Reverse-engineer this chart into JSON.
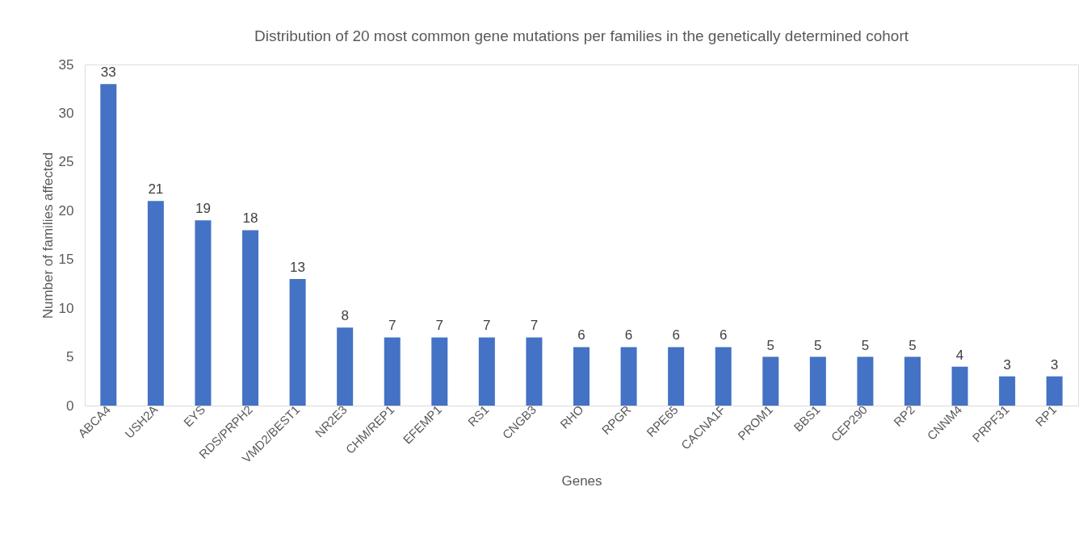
{
  "chart_data": {
    "type": "bar",
    "title": "Distribution  of 20 most common gene mutations per families in the genetically determined cohort",
    "xlabel": "Genes",
    "ylabel": "Number of families affected",
    "categories": [
      "ABCA4",
      "USH2A",
      "EYS",
      "RDS/PRPH2",
      "VMD2/BEST1",
      "NR2E3",
      "CHM/REP1",
      "EFEMP1",
      "RS1",
      "CNGB3",
      "RHO",
      "RPGR",
      "RPE65",
      "CACNA1F",
      "PROM1",
      "BBS1",
      "CEP290",
      "RP2",
      "CNNM4",
      "PRPF31",
      "RP1"
    ],
    "values": [
      33,
      21,
      19,
      18,
      13,
      8,
      7,
      7,
      7,
      7,
      6,
      6,
      6,
      6,
      5,
      5,
      5,
      5,
      4,
      3,
      3
    ],
    "color": "#4472c4",
    "ylim": [
      0,
      35
    ],
    "yticks": [
      0,
      5,
      10,
      15,
      20,
      25,
      30,
      35
    ],
    "grid": false,
    "data_labels": true
  }
}
